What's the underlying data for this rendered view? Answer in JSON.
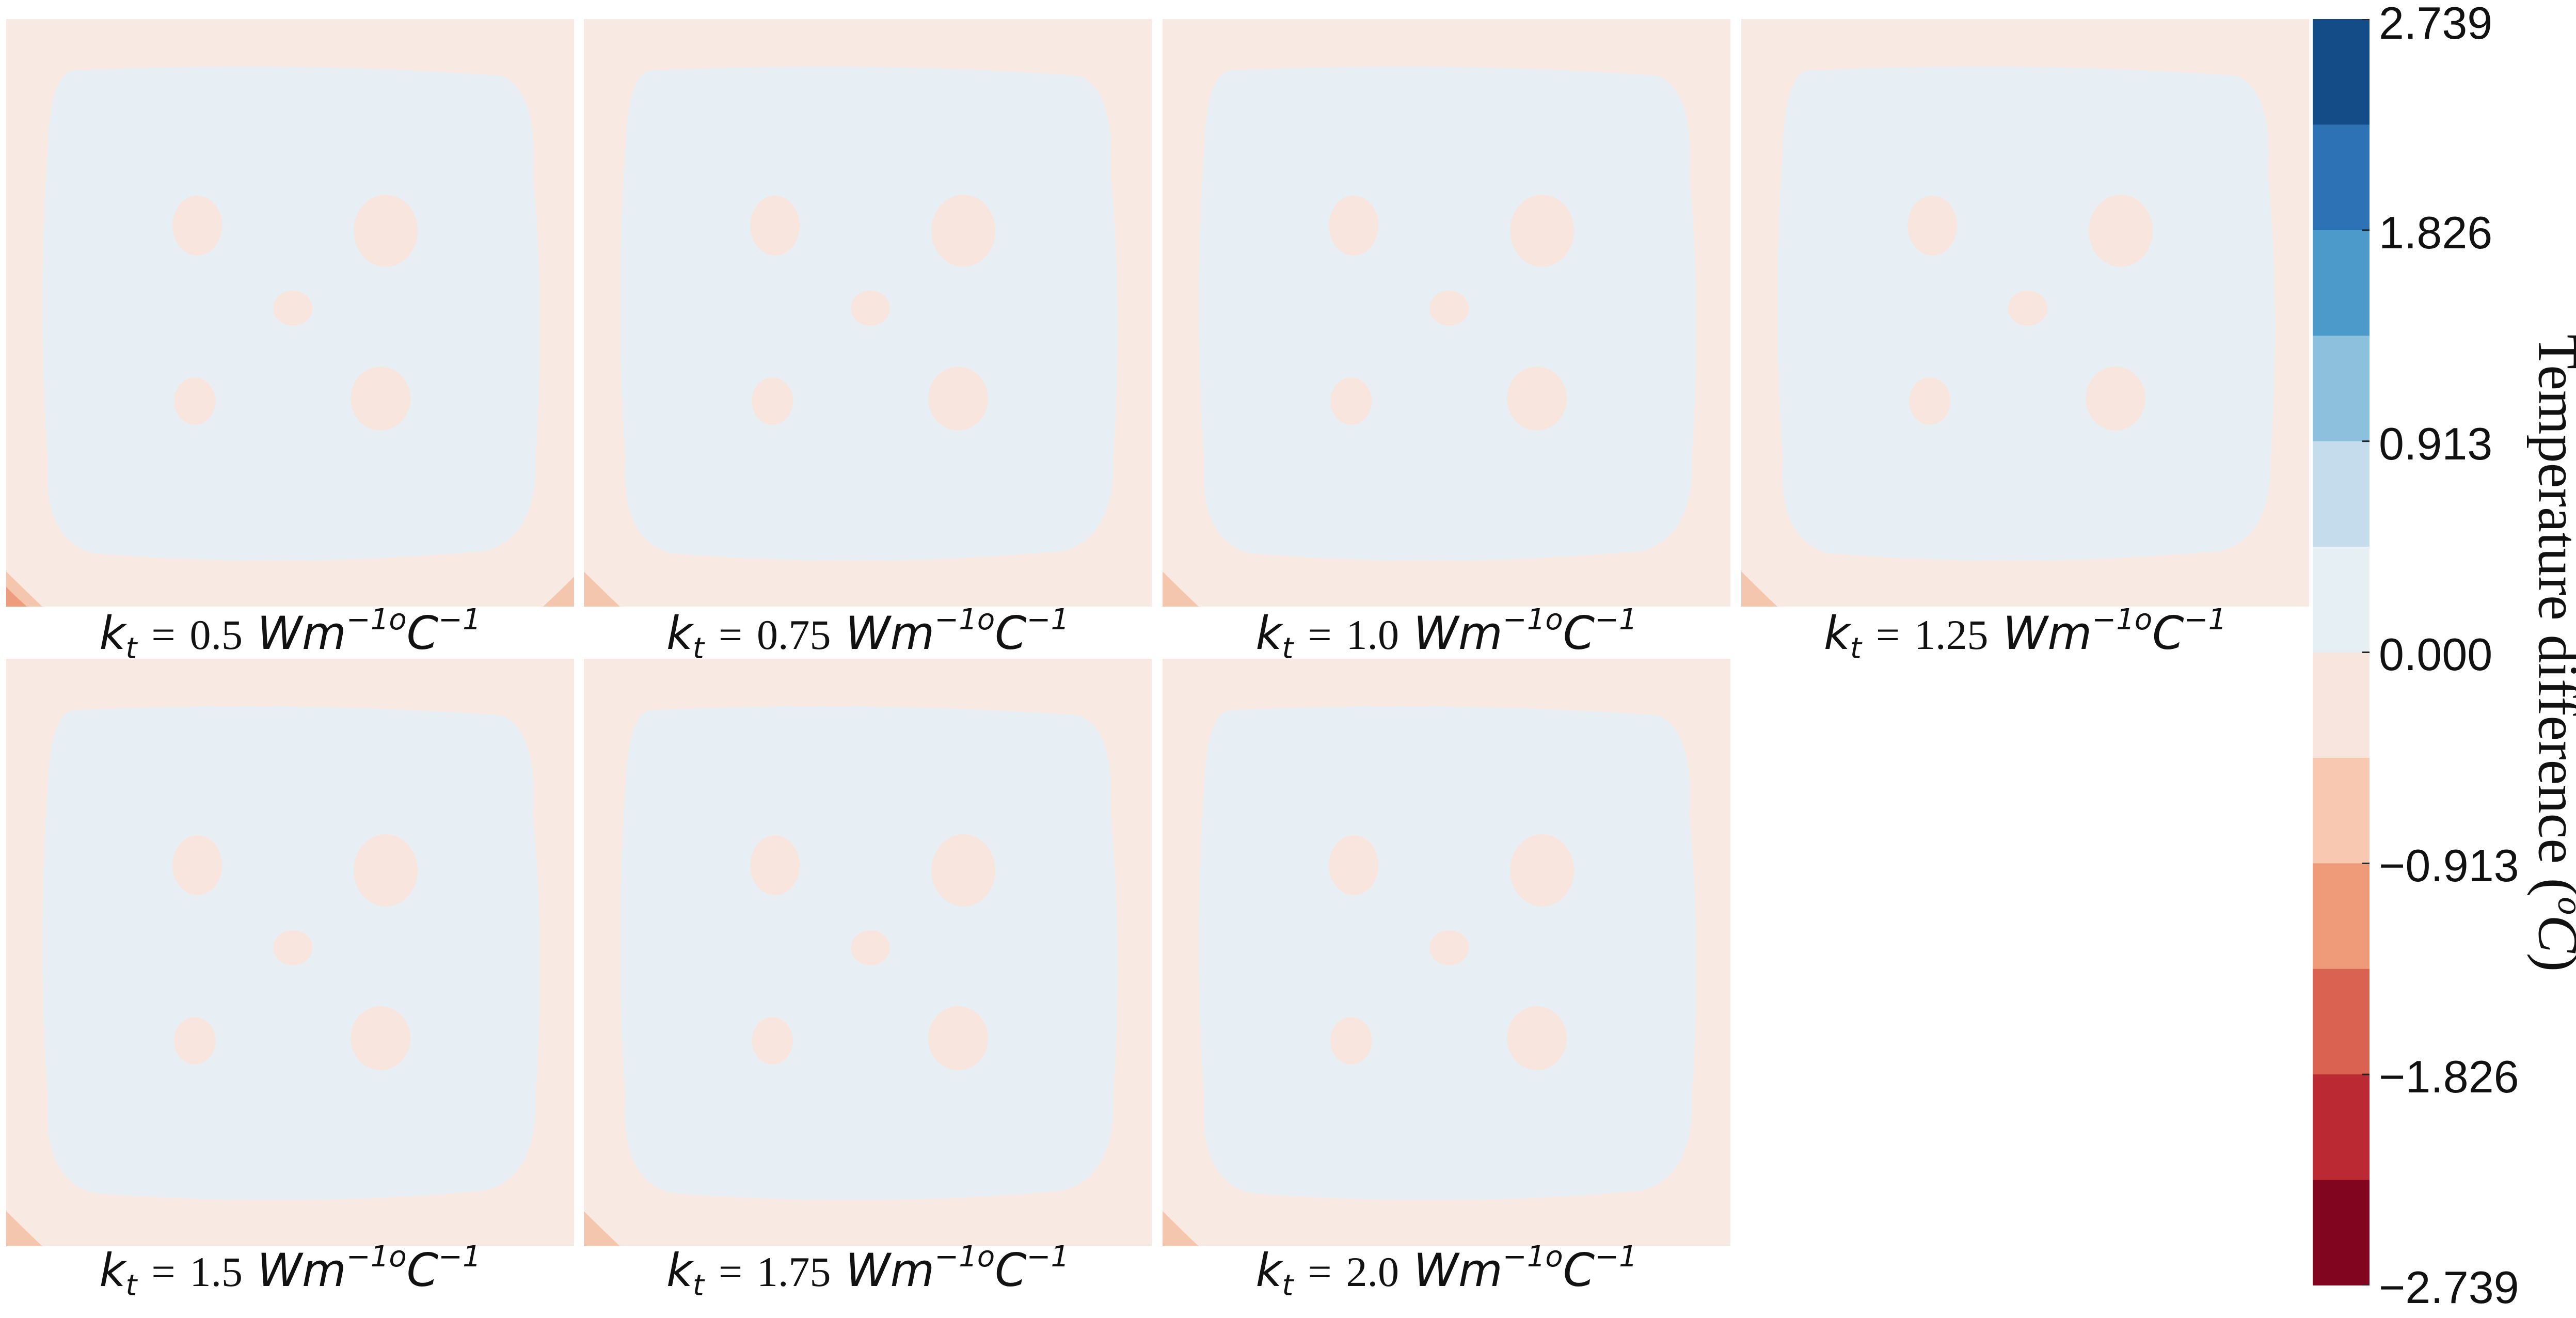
{
  "chart_data": {
    "type": "heatmap",
    "panels": [
      {
        "symbol": "k",
        "subscript": "t",
        "eq": "=",
        "value": "0.5",
        "unit_base": "Wm",
        "unit_exp1": "−1o",
        "unit_base2": "C",
        "unit_exp2": "−1"
      },
      {
        "symbol": "k",
        "subscript": "t",
        "eq": "=",
        "value": "0.75",
        "unit_base": "Wm",
        "unit_exp1": "−1o",
        "unit_base2": "C",
        "unit_exp2": "−1"
      },
      {
        "symbol": "k",
        "subscript": "t",
        "eq": "=",
        "value": "1.0",
        "unit_base": "Wm",
        "unit_exp1": "−1o",
        "unit_base2": "C",
        "unit_exp2": "−1"
      },
      {
        "symbol": "k",
        "subscript": "t",
        "eq": "=",
        "value": "1.25",
        "unit_base": "Wm",
        "unit_exp1": "−1o",
        "unit_base2": "C",
        "unit_exp2": "−1"
      },
      {
        "symbol": "k",
        "subscript": "t",
        "eq": "=",
        "value": "1.5",
        "unit_base": "Wm",
        "unit_exp1": "−1o",
        "unit_base2": "C",
        "unit_exp2": "−1"
      },
      {
        "symbol": "k",
        "subscript": "t",
        "eq": "=",
        "value": "1.75",
        "unit_base": "Wm",
        "unit_exp1": "−1o",
        "unit_base2": "C",
        "unit_exp2": "−1"
      },
      {
        "symbol": "k",
        "subscript": "t",
        "eq": "=",
        "value": "2.0",
        "unit_base": "Wm",
        "unit_exp1": "−1o",
        "unit_base2": "C",
        "unit_exp2": "−1"
      }
    ],
    "colorbar": {
      "title_text": "Temperature difference (",
      "title_sup": "o",
      "title_unit": "C",
      "title_close": ")",
      "vmin": -2.739,
      "vmax": 2.739,
      "levels": 12,
      "tick_labels": [
        "2.739",
        "1.826",
        "0.913",
        "0.000",
        "−0.913",
        "−1.826",
        "−2.739"
      ],
      "colors_top_to_bottom": [
        "#144c87",
        "#2c72b5",
        "#4c9ac9",
        "#8dc0dd",
        "#c4dcec",
        "#e6eff4",
        "#f8e6de",
        "#f8c8b0",
        "#ef9b7a",
        "#d96350",
        "#bb2a33",
        "#82051f"
      ]
    },
    "field_colors": {
      "background": "#f8e9e3",
      "interior": "#e7eff4",
      "spot": "#f8e6de",
      "corner": "#f5c6ae",
      "corner_dark": "#ee9c7e"
    }
  }
}
